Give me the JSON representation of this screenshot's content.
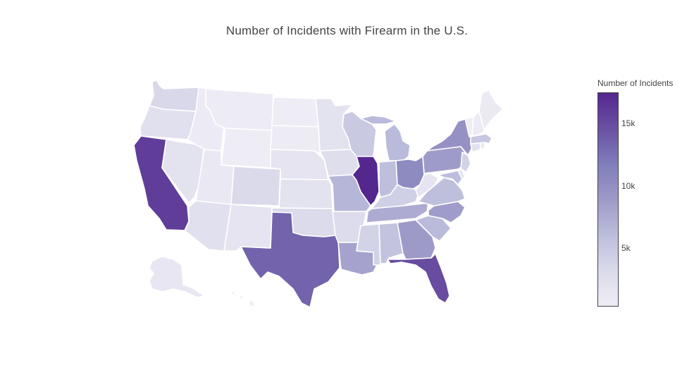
{
  "title": "Number of Incidents with Firearm in the U.S.",
  "colorbar": {
    "title": "Number of Incidents",
    "ticks": [
      {
        "label": "15k",
        "value": 15000
      },
      {
        "label": "10k",
        "value": 10000
      },
      {
        "label": "5k",
        "value": 5000
      }
    ],
    "min": 300,
    "max": 17500,
    "scale": "Purples",
    "colors": [
      "#efedf5",
      "#dadaeb",
      "#bcbddc",
      "#9e9ac8",
      "#807dba",
      "#6a51a3",
      "#54278f"
    ]
  },
  "chart_data": {
    "type": "choropleth",
    "title": "Number of Incidents with Firearm in the U.S.",
    "color_label": "Number of Incidents",
    "color_range": [
      300,
      17500
    ],
    "states": [
      {
        "id": "WA",
        "value": 3400
      },
      {
        "id": "OR",
        "value": 2200
      },
      {
        "id": "CA",
        "value": 16000
      },
      {
        "id": "NV",
        "value": 1900
      },
      {
        "id": "ID",
        "value": 700
      },
      {
        "id": "MT",
        "value": 600
      },
      {
        "id": "WY",
        "value": 400
      },
      {
        "id": "UT",
        "value": 1000
      },
      {
        "id": "AZ",
        "value": 2300
      },
      {
        "id": "CO",
        "value": 3200
      },
      {
        "id": "NM",
        "value": 1600
      },
      {
        "id": "ND",
        "value": 500
      },
      {
        "id": "SD",
        "value": 600
      },
      {
        "id": "NE",
        "value": 1600
      },
      {
        "id": "KS",
        "value": 2000
      },
      {
        "id": "OK",
        "value": 3000
      },
      {
        "id": "TX",
        "value": 13500
      },
      {
        "id": "MN",
        "value": 2000
      },
      {
        "id": "IA",
        "value": 2500
      },
      {
        "id": "MO",
        "value": 6600
      },
      {
        "id": "AR",
        "value": 2800
      },
      {
        "id": "LA",
        "value": 8200
      },
      {
        "id": "WI",
        "value": 4800
      },
      {
        "id": "IL",
        "value": 17500
      },
      {
        "id": "MI",
        "value": 6200
      },
      {
        "id": "IN",
        "value": 5800
      },
      {
        "id": "OH",
        "value": 10400
      },
      {
        "id": "KY",
        "value": 4200
      },
      {
        "id": "TN",
        "value": 7500
      },
      {
        "id": "MS",
        "value": 3900
      },
      {
        "id": "AL",
        "value": 5400
      },
      {
        "id": "GA",
        "value": 8900
      },
      {
        "id": "FL",
        "value": 15000
      },
      {
        "id": "SC",
        "value": 6200
      },
      {
        "id": "NC",
        "value": 8700
      },
      {
        "id": "VA",
        "value": 5800
      },
      {
        "id": "WV",
        "value": 1600
      },
      {
        "id": "PA",
        "value": 8800
      },
      {
        "id": "NY",
        "value": 9800
      },
      {
        "id": "NJ",
        "value": 4000
      },
      {
        "id": "MD",
        "value": 5900
      },
      {
        "id": "DE",
        "value": 1700
      },
      {
        "id": "CT",
        "value": 2000
      },
      {
        "id": "RI",
        "value": 1100
      },
      {
        "id": "MA",
        "value": 5000
      },
      {
        "id": "VT",
        "value": 400
      },
      {
        "id": "NH",
        "value": 600
      },
      {
        "id": "ME",
        "value": 800
      },
      {
        "id": "AK",
        "value": 1300
      },
      {
        "id": "HI",
        "value": 500
      }
    ]
  }
}
